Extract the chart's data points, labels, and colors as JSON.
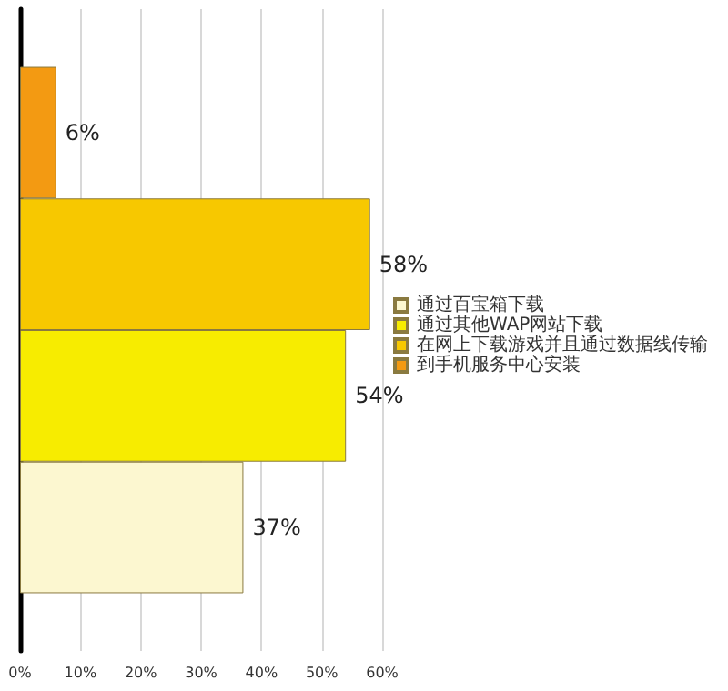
{
  "chart_data": {
    "type": "bar",
    "orientation": "horizontal",
    "categories": [
      null
    ],
    "series": [
      {
        "name": "到手机服务中心安装",
        "color": "#f39a12",
        "values": [
          6
        ],
        "value_labels": [
          "6%"
        ]
      },
      {
        "name": "在网上下载游戏并且通过数据线传输",
        "color": "#f7c800",
        "values": [
          58
        ],
        "value_labels": [
          "58%"
        ]
      },
      {
        "name": "通过其他WAP网站下载",
        "color": "#f7ec00",
        "values": [
          54
        ],
        "value_labels": [
          "54%"
        ]
      },
      {
        "name": "通过百宝箱下载",
        "color": "#fcf7d0",
        "values": [
          37
        ],
        "value_labels": [
          "37%"
        ]
      }
    ],
    "xlim": [
      0,
      60
    ],
    "xticks": [
      {
        "value": 0,
        "label": "0%"
      },
      {
        "value": 10,
        "label": "10%"
      },
      {
        "value": 20,
        "label": "20%"
      },
      {
        "value": 30,
        "label": "30%"
      },
      {
        "value": 40,
        "label": "40%"
      },
      {
        "value": 50,
        "label": "50%"
      },
      {
        "value": 60,
        "label": "60%"
      }
    ],
    "grid": "x",
    "legend": "right"
  }
}
